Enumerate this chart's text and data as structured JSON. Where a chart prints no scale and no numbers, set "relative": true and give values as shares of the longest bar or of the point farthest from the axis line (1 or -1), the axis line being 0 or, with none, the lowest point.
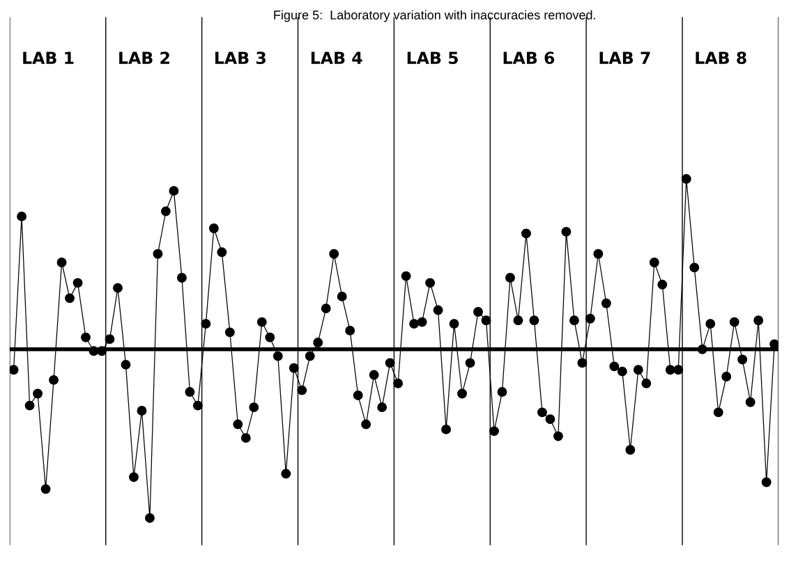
{
  "chart_data": {
    "type": "line",
    "title": "Figure 5:  Laboratory variation with inaccuracies removed.",
    "relative": true,
    "marker": "circle",
    "line_style": "solid",
    "grid": false,
    "legend": false,
    "categories": [
      null,
      null,
      null,
      null,
      null,
      null,
      null,
      null,
      null,
      null,
      null,
      null,
      null,
      null,
      null,
      null,
      null,
      null,
      null,
      null,
      null,
      null,
      null,
      null,
      null,
      null,
      null,
      null,
      null,
      null,
      null,
      null,
      null,
      null,
      null,
      null,
      null,
      null,
      null,
      null,
      null,
      null,
      null,
      null,
      null,
      null,
      null,
      null,
      null,
      null,
      null,
      null,
      null,
      null,
      null,
      null,
      null,
      null,
      null,
      null,
      null,
      null,
      null,
      null,
      null,
      null,
      null,
      null,
      null,
      null,
      null,
      null,
      null,
      null,
      null,
      null,
      null,
      null,
      null,
      null,
      null,
      null,
      null,
      null,
      null,
      null,
      null,
      null,
      null,
      null,
      null,
      null,
      null,
      null,
      null,
      null
    ],
    "series": [
      {
        "color": "#000000",
        "values": [
          -0.12,
          0.78,
          -0.33,
          -0.26,
          -0.82,
          -0.18,
          0.51,
          0.3,
          0.39,
          0.07,
          -0.01,
          -0.01,
          0.06,
          0.36,
          -0.09,
          -0.75,
          -0.36,
          -0.99,
          0.56,
          0.81,
          0.93,
          0.42,
          -0.25,
          -0.33,
          0.15,
          0.71,
          0.57,
          0.1,
          -0.44,
          -0.52,
          -0.34,
          0.16,
          0.07,
          -0.04,
          -0.73,
          -0.11,
          -0.24,
          -0.04,
          0.04,
          0.24,
          0.56,
          0.31,
          0.11,
          -0.27,
          -0.44,
          -0.15,
          -0.34,
          -0.08,
          -0.2,
          0.43,
          0.15,
          0.16,
          0.39,
          0.23,
          -0.47,
          0.15,
          -0.26,
          -0.08,
          0.22,
          0.17,
          -0.48,
          -0.25,
          0.42,
          0.17,
          0.68,
          0.17,
          -0.37,
          -0.41,
          -0.51,
          0.69,
          0.17,
          -0.08,
          0.18,
          0.56,
          0.27,
          -0.1,
          -0.13,
          -0.59,
          -0.12,
          -0.2,
          0.51,
          0.38,
          -0.12,
          -0.12,
          1.0,
          0.48,
          0.0,
          0.15,
          -0.37,
          -0.16,
          0.16,
          -0.06,
          -0.31,
          0.17,
          -0.78,
          0.03
        ]
      }
    ],
    "annotations": [
      "LAB 1",
      "LAB 2",
      "LAB 3",
      "LAB 4",
      "LAB 5",
      "LAB 6",
      "LAB 7",
      "LAB 8"
    ]
  }
}
